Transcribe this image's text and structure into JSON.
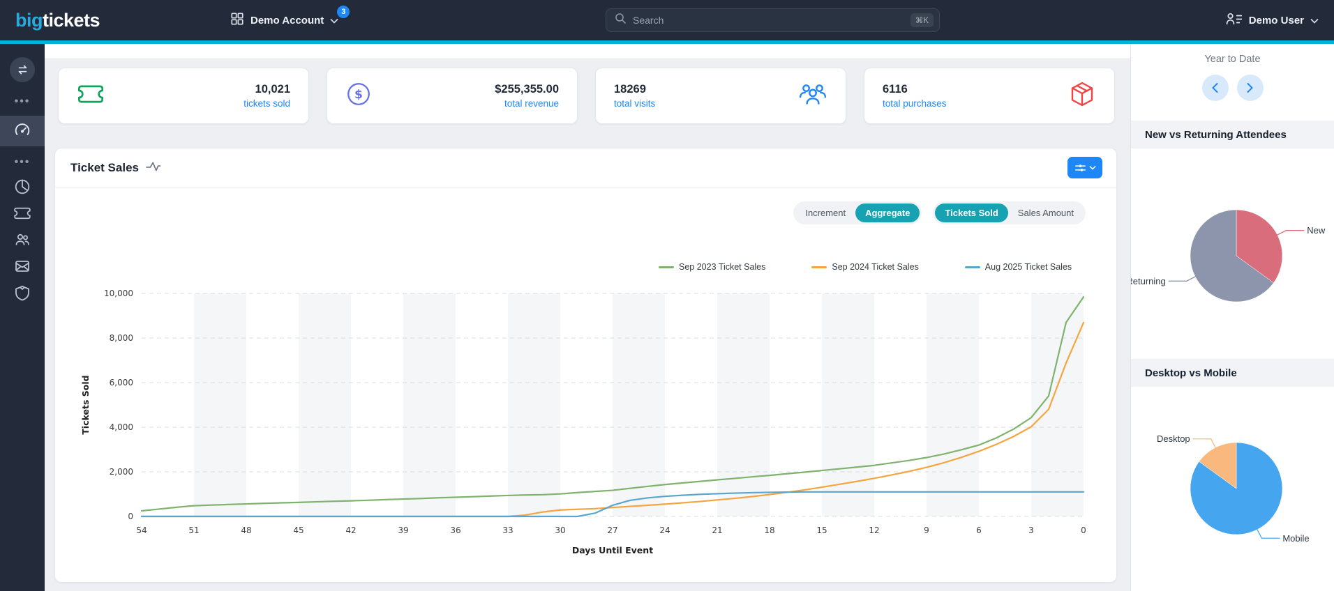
{
  "navbar": {
    "logo_big": "big",
    "logo_tickets": "tickets",
    "account": {
      "label": "Demo Account",
      "badge": "3"
    },
    "search": {
      "placeholder": "Search",
      "shortcut": "⌘K"
    },
    "user": {
      "label": "Demo User"
    }
  },
  "sidebar": {
    "icons": [
      "swap-horizontal",
      "ellipsis",
      "dashboard-gauge",
      "ellipsis",
      "pie-chart",
      "ticket",
      "users",
      "mail",
      "shield"
    ],
    "active": "dashboard-gauge"
  },
  "stats": [
    {
      "value": "10,021",
      "label": "tickets sold",
      "icon": "ticket",
      "icon_color": "#10a35c"
    },
    {
      "value": "$255,355.00",
      "label": "total revenue",
      "icon": "circle-dollar",
      "icon_color": "#6672e8"
    },
    {
      "value": "18269",
      "label": "total visits",
      "icon": "users-group",
      "icon_color": "#1d87f7"
    },
    {
      "value": "6116",
      "label": "total purchases",
      "icon": "package",
      "icon_color": "#f04444"
    }
  ],
  "ticket_sales": {
    "title": "Ticket Sales",
    "toggles": {
      "mode": {
        "options": [
          "Increment",
          "Aggregate"
        ],
        "active_index": 1
      },
      "metric": {
        "options": [
          "Tickets Sold",
          "Sales Amount"
        ],
        "active_index": 0
      }
    }
  },
  "chart_data": {
    "type": "line",
    "title": "Ticket Sales",
    "xlabel": "Days Until Event",
    "ylabel": "Tickets Sold",
    "x_start": 54,
    "x_end": 0,
    "x_step": -1,
    "x_ticks": [
      54,
      51,
      48,
      45,
      42,
      39,
      36,
      33,
      30,
      27,
      24,
      21,
      18,
      15,
      12,
      9,
      6,
      3,
      0
    ],
    "y_ticks": [
      0,
      2000,
      4000,
      6000,
      8000,
      10000
    ],
    "ylim": [
      0,
      10000
    ],
    "grid": "dashed-horizontal",
    "background_bands": "alternating vertical stripes every 3 days",
    "legend_position": "top",
    "series": [
      {
        "name": "Sep 2023 Ticket Sales",
        "color": "#7eb26d",
        "values": [
          250,
          330,
          410,
          480,
          510,
          535,
          560,
          585,
          610,
          630,
          655,
          680,
          700,
          725,
          755,
          780,
          805,
          835,
          860,
          885,
          915,
          940,
          960,
          975,
          1010,
          1070,
          1120,
          1170,
          1260,
          1345,
          1430,
          1500,
          1570,
          1640,
          1705,
          1775,
          1840,
          1915,
          1985,
          2060,
          2135,
          2210,
          2290,
          2400,
          2510,
          2640,
          2800,
          2990,
          3200,
          3520,
          3920,
          4430,
          5400,
          8700,
          9840
        ]
      },
      {
        "name": "Sep 2024 Ticket Sales",
        "color": "#f5a53f",
        "values": [
          0,
          0,
          0,
          0,
          0,
          0,
          0,
          0,
          0,
          0,
          0,
          0,
          0,
          0,
          0,
          0,
          0,
          0,
          0,
          0,
          0,
          0,
          60,
          200,
          290,
          320,
          350,
          400,
          450,
          500,
          550,
          610,
          670,
          740,
          810,
          890,
          980,
          1080,
          1190,
          1310,
          1440,
          1570,
          1710,
          1860,
          2020,
          2200,
          2410,
          2650,
          2920,
          3230,
          3590,
          4020,
          4800,
          6880,
          8690
        ]
      },
      {
        "name": "Aug 2025 Ticket Sales",
        "color": "#58a5cf",
        "values": [
          0,
          0,
          0,
          0,
          0,
          0,
          0,
          0,
          0,
          0,
          0,
          0,
          0,
          0,
          0,
          0,
          0,
          0,
          0,
          0,
          0,
          0,
          0,
          0,
          0,
          0,
          150,
          500,
          720,
          830,
          900,
          950,
          990,
          1020,
          1045,
          1065,
          1080,
          1092,
          1100,
          1100,
          1100,
          1100,
          1100,
          1100,
          1100,
          1100,
          1100,
          1100,
          1100,
          1100,
          1100,
          1100,
          1100,
          1100,
          1100
        ]
      }
    ]
  },
  "right_panel": {
    "period_label": "Year to Date",
    "sections": [
      {
        "title": "New vs Returning Attendees",
        "chart_data": {
          "type": "pie",
          "start_angle": "top",
          "direction": "clockwise",
          "unit": "percent",
          "slices": [
            {
              "label": "New",
              "value": 35,
              "color": "#d96d7b"
            },
            {
              "label": "Returning",
              "value": 65,
              "color": "#8d95ad"
            }
          ]
        }
      },
      {
        "title": "Desktop vs Mobile",
        "chart_data": {
          "type": "pie",
          "start_angle": "top",
          "direction": "clockwise",
          "unit": "percent",
          "slices": [
            {
              "label": "Mobile",
              "value": 85,
              "color": "#45a5ee"
            },
            {
              "label": "Desktop",
              "value": 15,
              "color": "#f9b87e"
            }
          ]
        }
      }
    ]
  }
}
